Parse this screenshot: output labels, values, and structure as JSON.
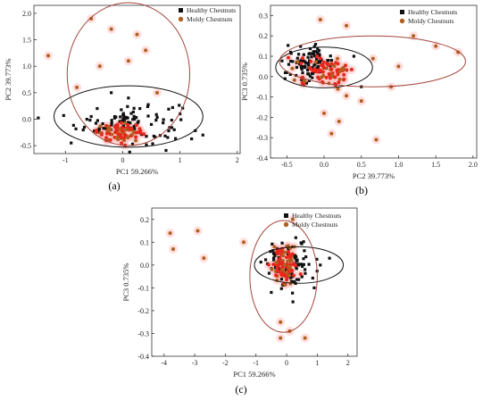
{
  "legend": {
    "healthy": "Healthy Chestnuts",
    "moldy": "Moldy Chestnuts"
  },
  "colors": {
    "healthy": "#111111",
    "moldy": "#e8261c",
    "moldy_dark": "#b0601f",
    "halo": "#ffc2c2",
    "ellipse_healthy": "#111111",
    "ellipse_moldy": "#a3453a"
  },
  "chart_data": [
    {
      "type": "scatter",
      "panel_label": "(a)",
      "xlabel": "PC1  59.266%",
      "ylabel": "PC2 39.773%",
      "xticks": [
        "-1",
        "0",
        "1",
        "2"
      ],
      "yticks": [
        "-0.5",
        "0.0",
        "0.5",
        "1.0",
        "1.5",
        "2.0"
      ],
      "xlim": [
        -1.55,
        2.05
      ],
      "ylim": [
        -0.65,
        2.15
      ],
      "series": [
        {
          "name": "Healthy Chestnuts",
          "points": [
            [
              -0.55,
              0.05
            ],
            [
              -0.4,
              -0.25
            ],
            [
              -0.2,
              0.5
            ],
            [
              0.1,
              0.4
            ],
            [
              0.5,
              -0.1
            ],
            [
              0.9,
              -0.2
            ],
            [
              1.0,
              0.1
            ],
            [
              1.4,
              -0.3
            ],
            [
              -0.9,
              -0.45
            ],
            [
              0.3,
              0.2
            ]
          ]
        },
        {
          "name": "Moldy Chestnuts",
          "points": [
            [
              -1.3,
              1.2
            ],
            [
              -0.55,
              1.9
            ],
            [
              -0.2,
              1.7
            ],
            [
              0.25,
              1.6
            ],
            [
              0.4,
              1.3
            ],
            [
              -0.4,
              1.0
            ],
            [
              0.1,
              1.1
            ],
            [
              -0.8,
              0.6
            ],
            [
              0.6,
              0.5
            ],
            [
              0.05,
              -0.2
            ],
            [
              -0.1,
              -0.35
            ],
            [
              -0.25,
              -0.15
            ]
          ]
        }
      ],
      "ellipses": [
        {
          "group": "Healthy Chestnuts",
          "cx": 0.1,
          "cy": 0.05,
          "rx": 1.3,
          "ry": 0.58
        },
        {
          "group": "Moldy Chestnuts",
          "cx": 0.1,
          "cy": 0.85,
          "rx": 1.07,
          "ry": 1.35
        }
      ]
    },
    {
      "type": "scatter",
      "panel_label": "(b)",
      "xlabel": "PC2 39.773%",
      "ylabel": "PC3 0.735%",
      "xticks": [
        "-0.5",
        "0.0",
        "0.5",
        "1.0",
        "1.5",
        "2.0"
      ],
      "yticks": [
        "-0.4",
        "-0.3",
        "-0.2",
        "-0.1",
        "0.0",
        "0.1",
        "0.2",
        "0.3"
      ],
      "xlim": [
        -0.72,
        2.05
      ],
      "ylim": [
        -0.4,
        0.35
      ],
      "series": [
        {
          "name": "Healthy Chestnuts",
          "points": [
            [
              -0.45,
              0.12
            ],
            [
              -0.3,
              0.05
            ],
            [
              -0.2,
              -0.02
            ],
            [
              0.1,
              0.08
            ],
            [
              0.4,
              0.1
            ],
            [
              0.5,
              -0.05
            ],
            [
              -0.5,
              0.02
            ]
          ]
        },
        {
          "name": "Moldy Chestnuts",
          "points": [
            [
              1.2,
              0.2
            ],
            [
              1.5,
              0.15
            ],
            [
              1.8,
              0.12
            ],
            [
              1.0,
              0.05
            ],
            [
              0.9,
              -0.05
            ],
            [
              0.5,
              -0.12
            ],
            [
              0.0,
              -0.18
            ],
            [
              0.2,
              -0.22
            ],
            [
              0.1,
              -0.28
            ],
            [
              0.7,
              -0.31
            ],
            [
              -0.05,
              0.28
            ],
            [
              0.3,
              0.25
            ]
          ]
        }
      ],
      "ellipses": [
        {
          "group": "Healthy Chestnuts",
          "cx": 0.0,
          "cy": 0.045,
          "rx": 0.65,
          "ry": 0.1
        },
        {
          "group": "Moldy Chestnuts",
          "cx": 0.65,
          "cy": 0.075,
          "rx": 1.25,
          "ry": 0.125
        }
      ]
    },
    {
      "type": "scatter",
      "panel_label": "(c)",
      "xlabel": "PC1  59.266%",
      "ylabel": "PC3 0.735%",
      "xticks": [
        "-4",
        "-3",
        "-2",
        "-1",
        "0",
        "1",
        "2"
      ],
      "yticks": [
        "-0.4",
        "-0.3",
        "-0.2",
        "-0.1",
        "0.0",
        "0.1",
        "0.2"
      ],
      "xlim": [
        -4.4,
        2.3
      ],
      "ylim": [
        -0.4,
        0.25
      ],
      "series": [
        {
          "name": "Healthy Chestnuts",
          "points": [
            [
              -0.3,
              0.05
            ],
            [
              0.2,
              0.08
            ],
            [
              0.6,
              -0.02
            ],
            [
              1.1,
              0.0
            ],
            [
              1.4,
              0.03
            ],
            [
              -0.5,
              -0.12
            ],
            [
              0.9,
              -0.1
            ],
            [
              0.3,
              0.12
            ]
          ]
        },
        {
          "name": "Moldy Chestnuts",
          "points": [
            [
              -3.8,
              0.14
            ],
            [
              -3.7,
              0.07
            ],
            [
              -2.9,
              0.15
            ],
            [
              -2.7,
              0.03
            ],
            [
              -0.2,
              -0.25
            ],
            [
              0.1,
              -0.29
            ],
            [
              0.6,
              -0.32
            ],
            [
              -0.2,
              -0.32
            ],
            [
              -0.4,
              0.08
            ],
            [
              0.2,
              0.2
            ],
            [
              -1.4,
              0.1
            ]
          ]
        }
      ],
      "ellipses": [
        {
          "group": "Healthy Chestnuts",
          "cx": 0.4,
          "cy": 0.0,
          "rx": 1.45,
          "ry": 0.08
        },
        {
          "group": "Moldy Chestnuts",
          "cx": -0.1,
          "cy": -0.05,
          "rx": 1.1,
          "ry": 0.245
        }
      ]
    }
  ]
}
